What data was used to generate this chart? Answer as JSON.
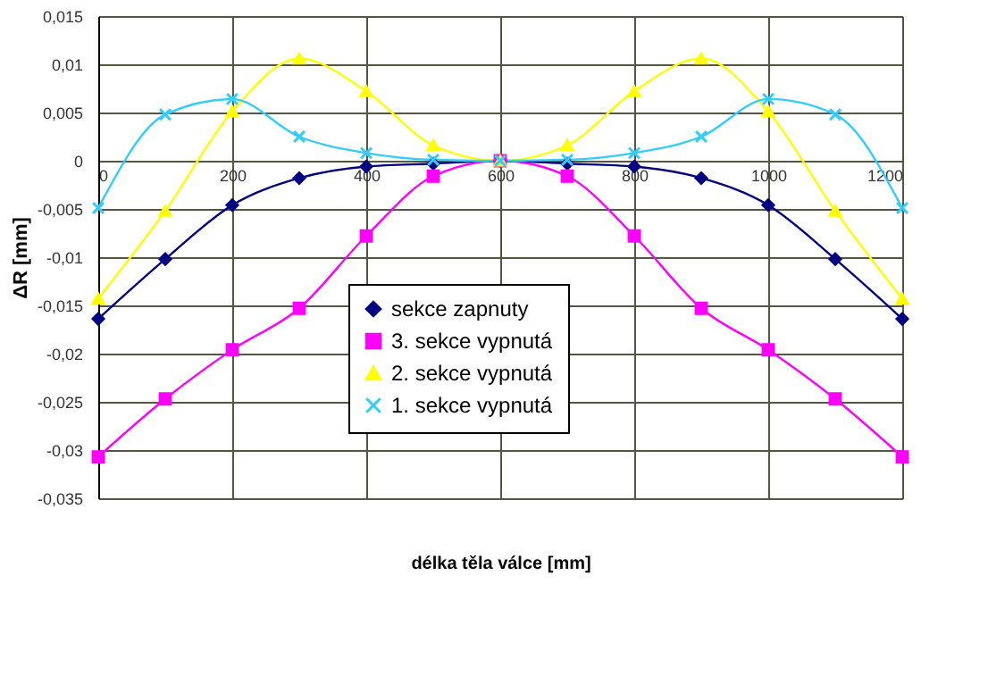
{
  "chart_data": {
    "type": "line",
    "xlabel": "délka těla válce [mm]",
    "ylabel": "ΔR [mm]",
    "x": [
      0,
      100,
      200,
      300,
      400,
      500,
      600,
      700,
      800,
      900,
      1000,
      1100,
      1200
    ],
    "series": [
      {
        "name": "sekce zapnuty",
        "color": "#000080",
        "marker": "diamond",
        "values": [
          -0.0164,
          -0.0102,
          -0.0046,
          -0.0018,
          -0.0006,
          -0.0003,
          0,
          -0.0003,
          -0.0006,
          -0.0018,
          -0.0046,
          -0.0102,
          -0.0164
        ]
      },
      {
        "name": "3. sekce vypnutá",
        "color": "#ff00ff",
        "marker": "square",
        "values": [
          -0.0307,
          -0.0247,
          -0.0196,
          -0.0153,
          -0.0078,
          -0.0016,
          0,
          -0.0016,
          -0.0078,
          -0.0153,
          -0.0196,
          -0.0247,
          -0.0307
        ]
      },
      {
        "name": "2. sekce vypnutá",
        "color": "#ffff00",
        "marker": "triangle",
        "values": [
          -0.0143,
          -0.0052,
          0.0051,
          0.0106,
          0.0072,
          0.0016,
          0,
          0.0016,
          0.0072,
          0.0106,
          0.0051,
          -0.0052,
          -0.0143
        ]
      },
      {
        "name": "1. sekce vypnutá",
        "color": "#33ccff",
        "marker": "cross",
        "values": [
          -0.0049,
          0.0048,
          0.0064,
          0.0025,
          0.0008,
          0.0001,
          0,
          0.0001,
          0.0008,
          0.0025,
          0.0064,
          0.0048,
          -0.0049
        ]
      }
    ],
    "xlim": [
      0,
      1200
    ],
    "xticks": [
      0,
      200,
      400,
      600,
      800,
      1000,
      1200
    ],
    "ylim": [
      -0.035,
      0.015
    ],
    "yticks": [
      {
        "value": -0.035,
        "label": "-0,035"
      },
      {
        "value": -0.03,
        "label": "-0,03"
      },
      {
        "value": -0.025,
        "label": "-0,025"
      },
      {
        "value": -0.02,
        "label": "-0,02"
      },
      {
        "value": -0.015,
        "label": "-0,015"
      },
      {
        "value": -0.01,
        "label": "-0,01"
      },
      {
        "value": -0.005,
        "label": "-0,005"
      },
      {
        "value": 0,
        "label": "0"
      },
      {
        "value": 0.005,
        "label": "0,005"
      },
      {
        "value": 0.01,
        "label": "0,01"
      },
      {
        "value": 0.015,
        "label": "0,015"
      }
    ],
    "grid": true,
    "legend": "bottom",
    "line_style": "solid"
  }
}
